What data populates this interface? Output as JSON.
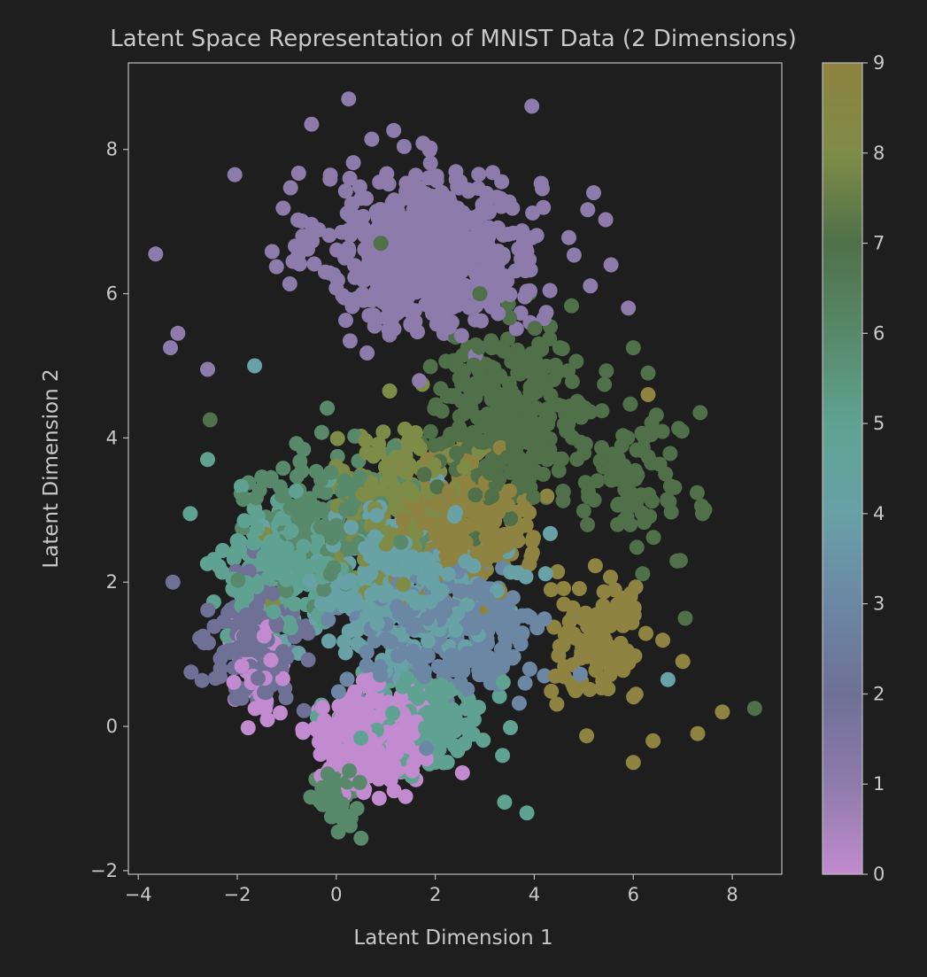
{
  "chart_data": {
    "type": "scatter",
    "title": "Latent Space Representation of MNIST Data (2 Dimensions)",
    "xlabel": "Latent Dimension 1",
    "ylabel": "Latent Dimension 2",
    "xlim": [
      -4.2,
      9.0
    ],
    "ylim": [
      -2.05,
      9.2
    ],
    "xticks": [
      -4,
      -2,
      0,
      2,
      4,
      6,
      8
    ],
    "yticks": [
      -2,
      0,
      2,
      4,
      6,
      8
    ],
    "grid": false,
    "colorbar": {
      "range": [
        0,
        9
      ],
      "ticks": [
        0,
        1,
        2,
        3,
        4,
        5,
        6,
        7,
        8,
        9
      ],
      "stops": [
        {
          "v": 0,
          "color": "#c28bcf"
        },
        {
          "v": 1,
          "color": "#8d7bab"
        },
        {
          "v": 2,
          "color": "#6f7096"
        },
        {
          "v": 3,
          "color": "#6b87a4"
        },
        {
          "v": 4,
          "color": "#68a1a6"
        },
        {
          "v": 5,
          "color": "#5fa291"
        },
        {
          "v": 6,
          "color": "#57896a"
        },
        {
          "v": 7,
          "color": "#4f7049"
        },
        {
          "v": 8,
          "color": "#7f8c48"
        },
        {
          "v": 9,
          "color": "#8e8340"
        }
      ]
    },
    "clusters": [
      {
        "label": 1,
        "center": [
          1.9,
          6.6
        ],
        "spread": [
          2.0,
          1.0
        ],
        "count": 620
      },
      {
        "label": 7,
        "center": [
          3.6,
          4.3
        ],
        "spread": [
          1.5,
          1.1
        ],
        "count": 300
      },
      {
        "label": 7,
        "center": [
          6.0,
          3.3
        ],
        "spread": [
          0.9,
          0.8
        ],
        "count": 80
      },
      {
        "label": 9,
        "center": [
          2.7,
          2.8
        ],
        "spread": [
          1.1,
          0.8
        ],
        "count": 220
      },
      {
        "label": 9,
        "center": [
          5.3,
          1.2
        ],
        "spread": [
          0.9,
          0.8
        ],
        "count": 110
      },
      {
        "label": 8,
        "center": [
          1.3,
          3.1
        ],
        "spread": [
          1.2,
          0.9
        ],
        "count": 180
      },
      {
        "label": 4,
        "center": [
          1.2,
          1.9
        ],
        "spread": [
          1.8,
          1.0
        ],
        "count": 320
      },
      {
        "label": 3,
        "center": [
          2.3,
          1.3
        ],
        "spread": [
          1.8,
          0.9
        ],
        "count": 260
      },
      {
        "label": 2,
        "center": [
          -1.6,
          1.2
        ],
        "spread": [
          0.8,
          0.8
        ],
        "count": 180
      },
      {
        "label": 5,
        "center": [
          -1.2,
          2.2
        ],
        "spread": [
          1.0,
          0.8
        ],
        "count": 170
      },
      {
        "label": 5,
        "center": [
          1.8,
          0.1
        ],
        "spread": [
          1.2,
          0.6
        ],
        "count": 150
      },
      {
        "label": 6,
        "center": [
          -0.3,
          2.9
        ],
        "spread": [
          1.4,
          1.0
        ],
        "count": 170
      },
      {
        "label": 6,
        "center": [
          0.0,
          -0.9
        ],
        "spread": [
          0.4,
          0.4
        ],
        "count": 60
      },
      {
        "label": 0,
        "center": [
          0.7,
          -0.2
        ],
        "spread": [
          0.9,
          0.6
        ],
        "count": 360
      },
      {
        "label": 0,
        "center": [
          -1.6,
          0.9
        ],
        "spread": [
          0.4,
          0.6
        ],
        "count": 60
      }
    ],
    "points": [
      {
        "x": -3.65,
        "y": 6.55,
        "label": 1
      },
      {
        "x": -3.3,
        "y": 2.0,
        "label": 2
      },
      {
        "x": -2.95,
        "y": 2.95,
        "label": 5
      },
      {
        "x": -2.6,
        "y": 3.7,
        "label": 5
      },
      {
        "x": -2.55,
        "y": 4.25,
        "label": 7
      },
      {
        "x": 0.5,
        "y": -1.55,
        "label": 6
      },
      {
        "x": 3.4,
        "y": -1.05,
        "label": 5
      },
      {
        "x": 3.85,
        "y": -1.2,
        "label": 5
      },
      {
        "x": 7.3,
        "y": -0.1,
        "label": 9
      },
      {
        "x": 7.8,
        "y": 0.2,
        "label": 9
      },
      {
        "x": 8.45,
        "y": 0.25,
        "label": 7
      },
      {
        "x": 7.35,
        "y": 4.35,
        "label": 7
      },
      {
        "x": 7.4,
        "y": 2.95,
        "label": 7
      },
      {
        "x": 7.0,
        "y": 0.9,
        "label": 9
      },
      {
        "x": 6.7,
        "y": 0.65,
        "label": 4
      },
      {
        "x": 6.3,
        "y": 4.6,
        "label": 9
      },
      {
        "x": 6.95,
        "y": 2.3,
        "label": 7
      },
      {
        "x": 7.05,
        "y": 1.5,
        "label": 7
      },
      {
        "x": 6.4,
        "y": -0.2,
        "label": 9
      },
      {
        "x": 6.0,
        "y": -0.5,
        "label": 9
      },
      {
        "x": 0.25,
        "y": 8.7,
        "label": 1
      },
      {
        "x": 3.95,
        "y": 8.6,
        "label": 1
      },
      {
        "x": -0.5,
        "y": 8.35,
        "label": 1
      },
      {
        "x": 5.2,
        "y": 7.4,
        "label": 1
      },
      {
        "x": 5.55,
        "y": 6.4,
        "label": 1
      },
      {
        "x": 5.9,
        "y": 5.8,
        "label": 1
      },
      {
        "x": 6.0,
        "y": 5.25,
        "label": 7
      },
      {
        "x": 6.3,
        "y": 4.9,
        "label": 7
      },
      {
        "x": -3.35,
        "y": 5.25,
        "label": 1
      },
      {
        "x": -3.2,
        "y": 5.45,
        "label": 1
      },
      {
        "x": -2.6,
        "y": 4.95,
        "label": 1
      },
      {
        "x": -2.05,
        "y": 7.65,
        "label": 1
      },
      {
        "x": 0.9,
        "y": 6.7,
        "label": 7
      },
      {
        "x": -1.65,
        "y": 5.0,
        "label": 4
      },
      {
        "x": 2.9,
        "y": 6.0,
        "label": 7
      }
    ]
  }
}
